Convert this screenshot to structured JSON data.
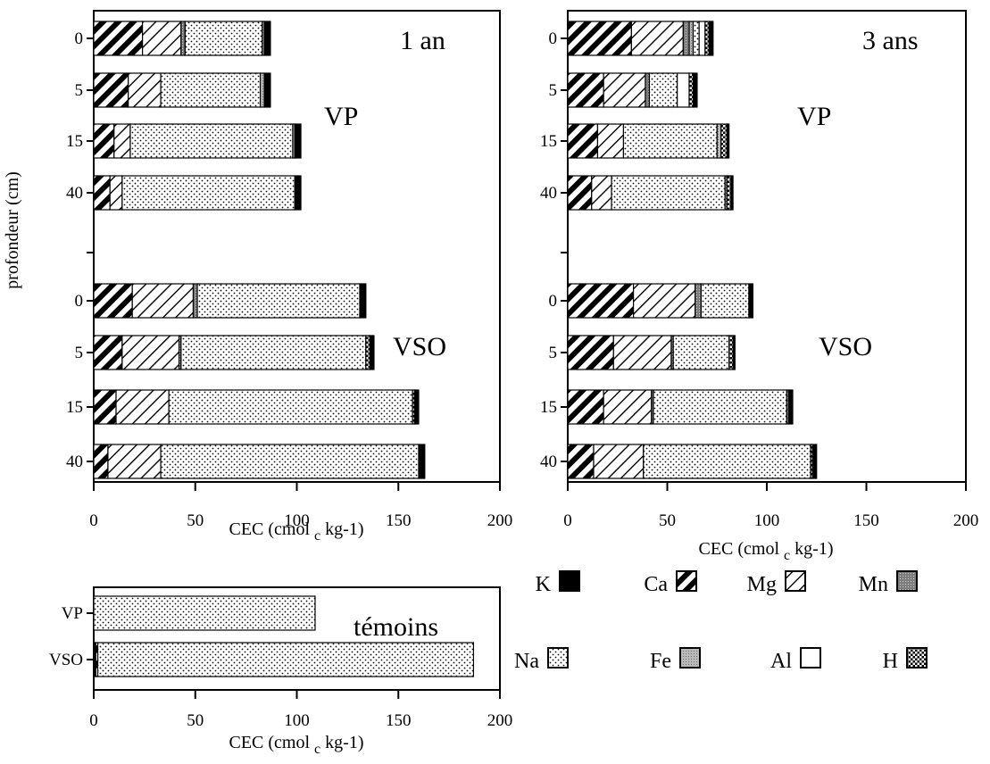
{
  "figure": {
    "ylabel": "profondeur (cm)",
    "xlabel_prefix": "CEC (cmol",
    "xlabel_sub": "c",
    "xlabel_suffix": " kg-1)"
  },
  "components": [
    {
      "name": "K",
      "fill": "solid",
      "color": "#000000"
    },
    {
      "name": "Ca",
      "fill": "thick-diagonal",
      "color": "#000000"
    },
    {
      "name": "Mg",
      "fill": "thin-diagonal",
      "color": "#000000"
    },
    {
      "name": "Mn",
      "fill": "dark-gray",
      "color": "#8a8a8a"
    },
    {
      "name": "Na",
      "fill": "dots",
      "color": "#000000"
    },
    {
      "name": "Fe",
      "fill": "light-gray",
      "color": "#b4b4b4"
    },
    {
      "name": "Al",
      "fill": "white",
      "color": "#ffffff"
    },
    {
      "name": "H",
      "fill": "checker",
      "color": "#000000"
    }
  ],
  "chart_data": [
    {
      "type": "bar",
      "orientation": "horizontal",
      "stacked": true,
      "panel_label": "1 an",
      "xlim": [
        0,
        200
      ],
      "xticks": [
        0,
        50,
        100,
        150,
        200
      ],
      "xlabel": "CEC (cmol c kg-1)",
      "ylabel": "profondeur (cm)",
      "groups": [
        {
          "label": "VP",
          "bars": [
            {
              "depth": "0",
              "segments": {
                "Ca": 24,
                "Mg": 19,
                "Mn": 2,
                "Na": 38,
                "Fe": 1,
                "K": 3
              }
            },
            {
              "depth": "5",
              "segments": {
                "Ca": 17,
                "Mg": 16,
                "Na": 49,
                "Fe": 2,
                "K": 3
              }
            },
            {
              "depth": "15",
              "segments": {
                "Ca": 10,
                "Mg": 8,
                "Na": 80,
                "Fe": 1,
                "K": 3
              }
            },
            {
              "depth": "40",
              "segments": {
                "Ca": 8,
                "Mg": 6,
                "Na": 85,
                "K": 3
              }
            }
          ]
        },
        {
          "label": "VSO",
          "bars": [
            {
              "depth": "0",
              "segments": {
                "Ca": 19,
                "Mg": 30,
                "Mn": 2,
                "Na": 80,
                "K": 3
              }
            },
            {
              "depth": "5",
              "segments": {
                "Ca": 14,
                "Mg": 28,
                "Mn": 1,
                "Na": 91,
                "H": 2,
                "K": 2
              }
            },
            {
              "depth": "15",
              "segments": {
                "Ca": 11,
                "Mg": 26,
                "Na": 120,
                "H": 1,
                "K": 2
              }
            },
            {
              "depth": "40",
              "segments": {
                "Ca": 7,
                "Mg": 26,
                "Na": 127,
                "K": 3
              }
            }
          ]
        }
      ]
    },
    {
      "type": "bar",
      "orientation": "horizontal",
      "stacked": true,
      "panel_label": "3 ans",
      "xlim": [
        0,
        200
      ],
      "xticks": [
        0,
        50,
        100,
        150,
        200
      ],
      "xlabel": "CEC (cmol c kg-1)",
      "ylabel": "",
      "groups": [
        {
          "label": "VP",
          "bars": [
            {
              "depth": "0",
              "segments": {
                "Ca": 32,
                "Mg": 26,
                "Mn": 3,
                "Fe": 2,
                "Na": 3,
                "Al": 3,
                "H": 2,
                "K": 2
              }
            },
            {
              "depth": "5",
              "segments": {
                "Ca": 18,
                "Mg": 21,
                "Mn": 2,
                "Na": 14,
                "Al": 6,
                "H": 2,
                "K": 2
              }
            },
            {
              "depth": "15",
              "segments": {
                "Ca": 15,
                "Mg": 13,
                "Na": 47,
                "Fe": 2,
                "H": 3,
                "K": 1
              }
            },
            {
              "depth": "40",
              "segments": {
                "Ca": 12,
                "Mg": 10,
                "Na": 57,
                "Fe": 1,
                "H": 2,
                "K": 1
              }
            }
          ]
        },
        {
          "label": "VSO",
          "bars": [
            {
              "depth": "0",
              "segments": {
                "Ca": 33,
                "Mg": 31,
                "Mn": 3,
                "Na": 24,
                "K": 2
              }
            },
            {
              "depth": "5",
              "segments": {
                "Ca": 23,
                "Mg": 29,
                "Mn": 1,
                "Na": 28,
                "H": 2,
                "K": 1
              }
            },
            {
              "depth": "15",
              "segments": {
                "Ca": 18,
                "Mg": 24,
                "Mn": 1,
                "Na": 67,
                "H": 1,
                "K": 2
              }
            },
            {
              "depth": "40",
              "segments": {
                "Ca": 13,
                "Mg": 25,
                "Na": 84,
                "H": 1,
                "K": 2
              }
            }
          ]
        }
      ]
    },
    {
      "type": "bar",
      "orientation": "horizontal",
      "stacked": true,
      "panel_label": "témoins",
      "xlim": [
        0,
        200
      ],
      "xticks": [
        0,
        50,
        100,
        150,
        200
      ],
      "xlabel": "CEC (cmol c kg-1)",
      "ylabel": "",
      "groups": [
        {
          "label": "",
          "bars": [
            {
              "depth": "VP",
              "segments": {
                "Na": 109
              }
            },
            {
              "depth": "VSO",
              "segments": {
                "K": 1,
                "Ca": 1,
                "Na": 185
              }
            }
          ]
        }
      ]
    }
  ]
}
